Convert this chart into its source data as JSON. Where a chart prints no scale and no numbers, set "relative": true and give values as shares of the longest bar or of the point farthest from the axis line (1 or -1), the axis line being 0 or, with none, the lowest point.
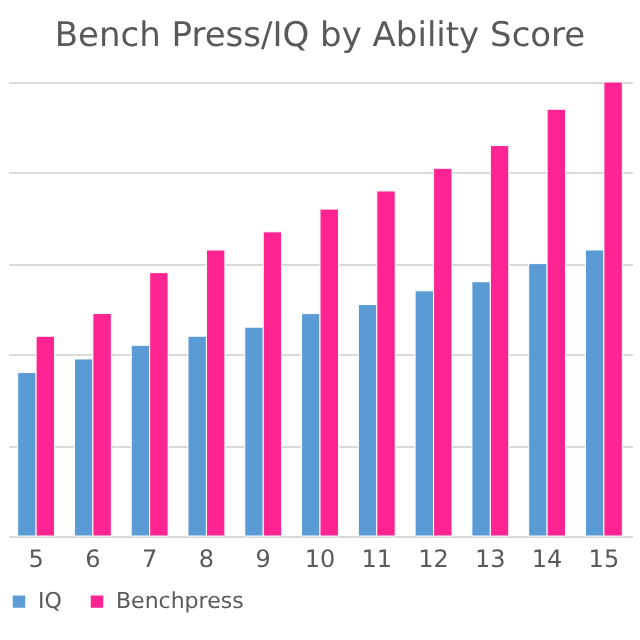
{
  "chart_data": {
    "type": "bar",
    "title": "Bench Press/IQ by Ability Score",
    "relative": true,
    "grid": "y",
    "legend": "bottom",
    "categories": [
      "5",
      "6",
      "7",
      "8",
      "9",
      "10",
      "11",
      "12",
      "13",
      "14",
      "15"
    ],
    "series": [
      {
        "name": "IQ",
        "color": "#5b9bd5",
        "values": [
          0.36,
          0.39,
          0.42,
          0.44,
          0.46,
          0.49,
          0.51,
          0.54,
          0.56,
          0.6,
          0.63
        ]
      },
      {
        "name": "Benchpress",
        "color": "#ff2491",
        "values": [
          0.44,
          0.49,
          0.58,
          0.63,
          0.67,
          0.72,
          0.76,
          0.81,
          0.86,
          0.94,
          1
        ]
      }
    ]
  }
}
